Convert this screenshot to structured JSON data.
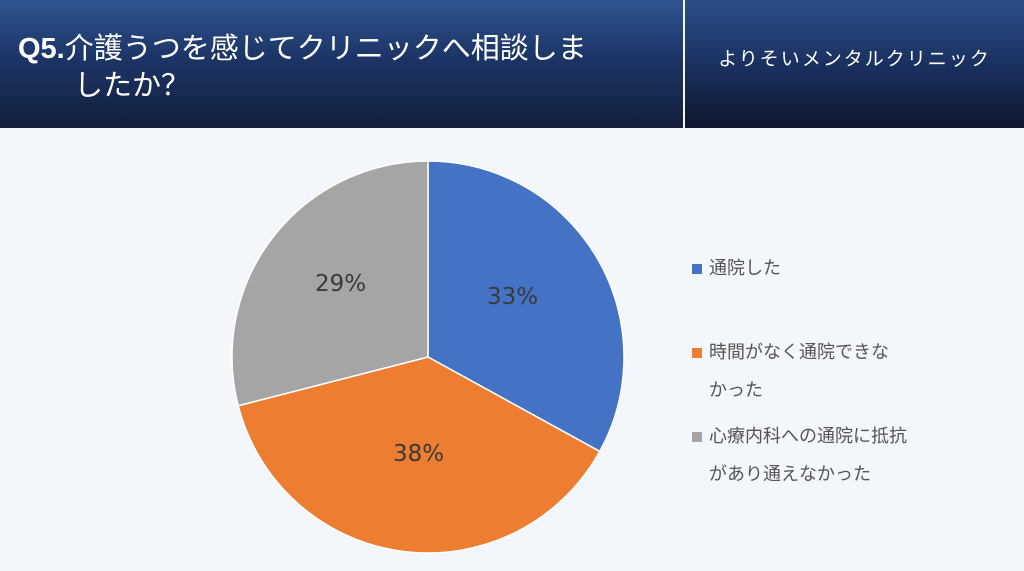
{
  "header": {
    "question_number": "Q5.",
    "title_line1": "介護うつを感じてクリニックへ相談しま",
    "title_line2": "したか？",
    "organization": "よりそいメンタルクリニック"
  },
  "legend": [
    {
      "label": "通院した",
      "color": "#4472c4"
    },
    {
      "label": "時間がなく通院できな\nかった",
      "color": "#ed7d31"
    },
    {
      "label": "心療内科への通院に抵抗\nがあり通えなかった",
      "color": "#a5a5a5"
    }
  ],
  "slice_labels": [
    "33%",
    "38%",
    "29%"
  ],
  "chart_data": {
    "type": "pie",
    "title": "Q5.介護うつを感じてクリニックへ相談しましたか？",
    "categories": [
      "通院した",
      "時間がなく通院できなかった",
      "心療内科への通院に抵抗があり通えなかった"
    ],
    "values": [
      33,
      38,
      29
    ],
    "unit": "%",
    "colors": [
      "#4472c4",
      "#ed7d31",
      "#a5a5a5"
    ],
    "legend_position": "right",
    "start_angle": "12 o'clock, clockwise"
  }
}
